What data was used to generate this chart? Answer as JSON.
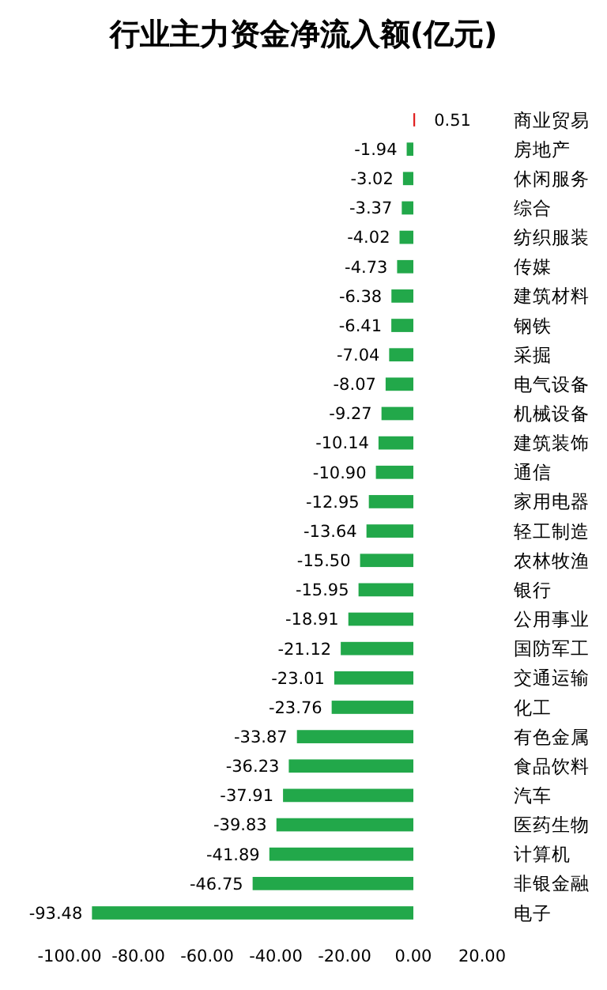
{
  "chart_data": {
    "type": "bar",
    "orientation": "horizontal",
    "title": "行业主力资金净流入额(亿元)",
    "categories": [
      "商业贸易",
      "房地产",
      "休闲服务",
      "综合",
      "纺织服装",
      "传媒",
      "建筑材料",
      "钢铁",
      "采掘",
      "电气设备",
      "机械设备",
      "建筑装饰",
      "通信",
      "家用电器",
      "轻工制造",
      "农林牧渔",
      "银行",
      "公用事业",
      "国防军工",
      "交通运输",
      "化工",
      "有色金属",
      "食品饮料",
      "汽车",
      "医药生物",
      "计算机",
      "非银金融",
      "电子"
    ],
    "values": [
      0.51,
      -1.94,
      -3.02,
      -3.37,
      -4.02,
      -4.73,
      -6.38,
      -6.41,
      -7.04,
      -8.07,
      -9.27,
      -10.14,
      -10.9,
      -12.95,
      -13.64,
      -15.5,
      -15.95,
      -18.91,
      -21.12,
      -23.01,
      -23.76,
      -33.87,
      -36.23,
      -37.91,
      -39.83,
      -41.89,
      -46.75,
      -93.48
    ],
    "colors": [
      "#e02020",
      "#22a84a",
      "#22a84a",
      "#22a84a",
      "#22a84a",
      "#22a84a",
      "#22a84a",
      "#22a84a",
      "#22a84a",
      "#22a84a",
      "#22a84a",
      "#22a84a",
      "#22a84a",
      "#22a84a",
      "#22a84a",
      "#22a84a",
      "#22a84a",
      "#22a84a",
      "#22a84a",
      "#22a84a",
      "#22a84a",
      "#22a84a",
      "#22a84a",
      "#22a84a",
      "#22a84a",
      "#22a84a",
      "#22a84a",
      "#22a84a"
    ],
    "value_labels": [
      "0.51",
      "-1.94",
      "-3.02",
      "-3.37",
      "-4.02",
      "-4.73",
      "-6.38",
      "-6.41",
      "-7.04",
      "-8.07",
      "-9.27",
      "-10.14",
      "-10.90",
      "-12.95",
      "-13.64",
      "-15.50",
      "-15.95",
      "-18.91",
      "-21.12",
      "-23.01",
      "-23.76",
      "-33.87",
      "-36.23",
      "-37.91",
      "-39.83",
      "-41.89",
      "-46.75",
      "-93.48"
    ],
    "xlim": [
      -100,
      20
    ],
    "xticks": [
      {
        "value": -100,
        "label": "-100.00"
      },
      {
        "value": -80,
        "label": "-80.00"
      },
      {
        "value": -60,
        "label": "-60.00"
      },
      {
        "value": -40,
        "label": "-40.00"
      },
      {
        "value": -20,
        "label": "-20.00"
      },
      {
        "value": 0,
        "label": "0.00"
      },
      {
        "value": 20,
        "label": "20.00"
      }
    ],
    "grid": false
  }
}
